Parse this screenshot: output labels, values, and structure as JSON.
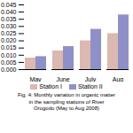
{
  "chart_data": {
    "type": "bar",
    "categories": [
      "May",
      "June",
      "July",
      "Aug"
    ],
    "series": [
      {
        "name": "Station I",
        "color": "#dbb8b0",
        "values": [
          0.008,
          0.013,
          0.02,
          0.025
        ]
      },
      {
        "name": "Station II",
        "color": "#9090c8",
        "values": [
          0.009,
          0.016,
          0.028,
          0.038
        ]
      }
    ],
    "ylim": [
      0,
      0.045
    ],
    "yticks": [
      {
        "value": 0,
        "label": "0.000"
      },
      {
        "value": 0.005,
        "label": "0.005"
      },
      {
        "value": 0.01,
        "label": "0.010"
      },
      {
        "value": 0.015,
        "label": "0.015"
      },
      {
        "value": 0.02,
        "label": "0.020"
      },
      {
        "value": 0.025,
        "label": "0.025"
      },
      {
        "value": 0.03,
        "label": "0.030"
      },
      {
        "value": 0.035,
        "label": "0.035"
      },
      {
        "value": 0.04,
        "label": "0.040"
      },
      {
        "value": 0.045,
        "label": "0.045"
      }
    ],
    "grid": false,
    "legend": "bottom",
    "caption": "Fig. 4: Monthly variation in organic matter\nin the sampling stations of River\nOrogodo (May to Aug 2008)"
  }
}
